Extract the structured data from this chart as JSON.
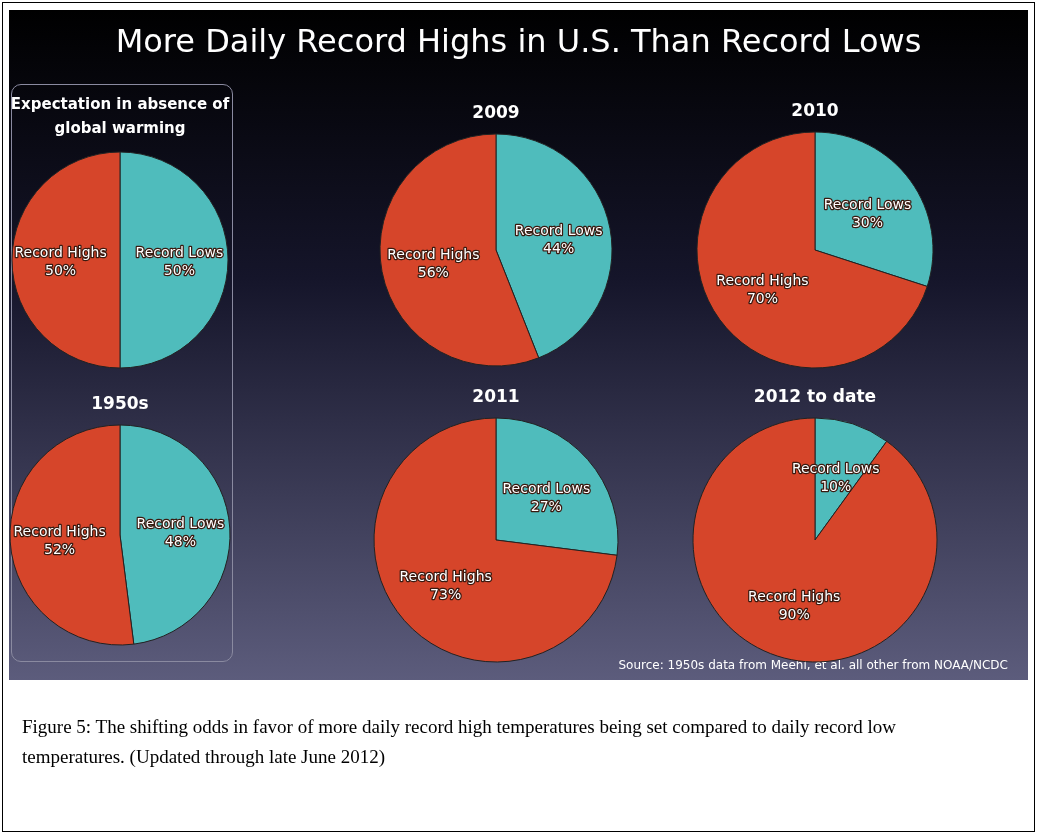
{
  "chart_data": [
    {
      "type": "other",
      "title": "More Daily Record Highs in U.S. Than Record Lows",
      "annotations": [
        "Source: 1950s data from Meehl, et al. all other from NOAA/NCDC",
        "Figure 5: The shifting odds in favor of more daily record high temperatures being set compared to daily record low temperatures. (Updated through late June 2012)"
      ]
    },
    {
      "type": "pie",
      "title": "Expectation in absence of global warming",
      "categories": [
        "Record Lows",
        "Record Highs"
      ],
      "values": [
        50,
        50
      ],
      "value_labels": [
        "50%",
        "50%"
      ],
      "colors": [
        "#4fbcbc",
        "#d6452a"
      ]
    },
    {
      "type": "pie",
      "title": "2009",
      "categories": [
        "Record Lows",
        "Record Highs"
      ],
      "values": [
        44,
        56
      ],
      "value_labels": [
        "44%",
        "56%"
      ],
      "colors": [
        "#4fbcbc",
        "#d6452a"
      ]
    },
    {
      "type": "pie",
      "title": "2010",
      "categories": [
        "Record Lows",
        "Record Highs"
      ],
      "values": [
        30,
        70
      ],
      "value_labels": [
        "30%",
        "70%"
      ],
      "colors": [
        "#4fbcbc",
        "#d6452a"
      ]
    },
    {
      "type": "pie",
      "title": "1950s",
      "categories": [
        "Record Lows",
        "Record Highs"
      ],
      "values": [
        48,
        52
      ],
      "value_labels": [
        "48%",
        "52%"
      ],
      "colors": [
        "#4fbcbc",
        "#d6452a"
      ]
    },
    {
      "type": "pie",
      "title": "2011",
      "categories": [
        "Record Lows",
        "Record Highs"
      ],
      "values": [
        27,
        73
      ],
      "value_labels": [
        "27%",
        "73%"
      ],
      "colors": [
        "#4fbcbc",
        "#d6452a"
      ]
    },
    {
      "type": "pie",
      "title": "2012 to date",
      "categories": [
        "Record Lows",
        "Record Highs"
      ],
      "values": [
        10,
        90
      ],
      "value_labels": [
        "10%",
        "90%"
      ],
      "colors": [
        "#4fbcbc",
        "#d6452a"
      ]
    }
  ]
}
